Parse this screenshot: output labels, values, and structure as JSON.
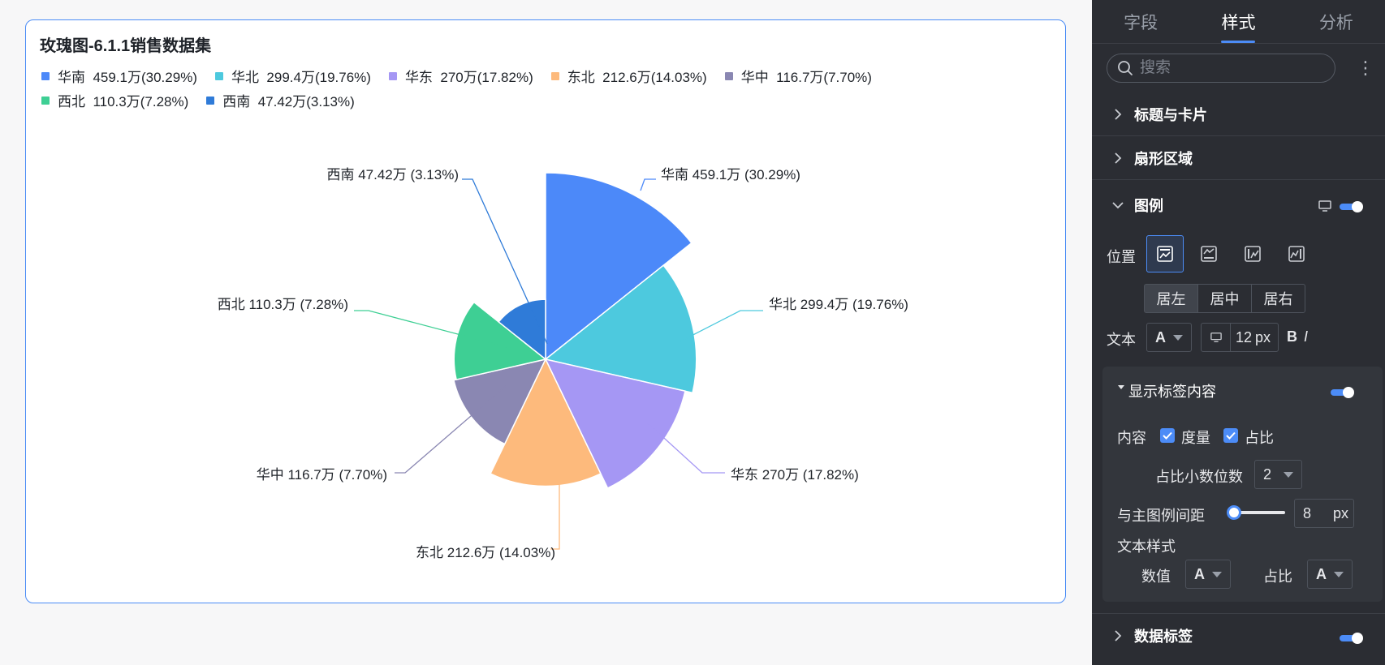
{
  "chart_title": "玫瑰图-6.1.1销售数据集",
  "chart_data": {
    "type": "pie",
    "title": "玫瑰图-6.1.1销售数据集",
    "subtype": "rose",
    "legend_position": "top-left",
    "slices": [
      {
        "name": "华南",
        "value": 459.1,
        "value_label": "459.1万",
        "percent_label": "30.29%",
        "color": "#4c89f9"
      },
      {
        "name": "华北",
        "value": 299.4,
        "value_label": "299.4万",
        "percent_label": "19.76%",
        "color": "#4dc9de"
      },
      {
        "name": "华东",
        "value": 270,
        "value_label": "270万",
        "percent_label": "17.82%",
        "color": "#a597f4"
      },
      {
        "name": "东北",
        "value": 212.6,
        "value_label": "212.6万",
        "percent_label": "14.03%",
        "color": "#fdba7c"
      },
      {
        "name": "华中",
        "value": 116.7,
        "value_label": "116.7万",
        "percent_label": "7.70%",
        "color": "#8a87b2"
      },
      {
        "name": "西北",
        "value": 110.3,
        "value_label": "110.3万",
        "percent_label": "7.28%",
        "color": "#3ecf94"
      },
      {
        "name": "西南",
        "value": 47.42,
        "value_label": "47.42万",
        "percent_label": "3.13%",
        "color": "#2f7bd8"
      }
    ],
    "legend": [
      "华南  459.1万(30.29%)",
      "华北  299.4万(19.76%)",
      "华东  270万(17.82%)",
      "东北  212.6万(14.03%)",
      "华中  116.7万(7.70%)",
      "西北  110.3万(7.28%)",
      "西南  47.42万(3.13%)"
    ],
    "data_labels": [
      "华南 459.1万 (30.29%)",
      "华北 299.4万 (19.76%)",
      "华东 270万 (17.82%)",
      "东北 212.6万 (14.03%)",
      "华中 116.7万 (7.70%)",
      "西北 110.3万 (7.28%)",
      "西南 47.42万 (3.13%)"
    ]
  },
  "panel": {
    "tabs": [
      {
        "label": "字段",
        "active": false
      },
      {
        "label": "样式",
        "active": true
      },
      {
        "label": "分析",
        "active": false
      }
    ],
    "search": {
      "placeholder": "搜索"
    },
    "more": "⋮",
    "sections": {
      "title_card": "标题与卡片",
      "sector_area": "扇形区域",
      "legend": "图例",
      "data_labels": "数据标签"
    },
    "legend_settings": {
      "position_label": "位置",
      "align": [
        {
          "label": "居左",
          "active": true
        },
        {
          "label": "居中",
          "active": false
        },
        {
          "label": "居右",
          "active": false
        }
      ],
      "text_label": "文本",
      "font_glyph": "A",
      "font_size": "12",
      "font_unit": "px",
      "bold": "B",
      "italic": "I",
      "show_label_content": "显示标签内容",
      "content_label": "内容",
      "measure_label": "度量",
      "ratio_label": "占比",
      "decimals_label": "占比小数位数",
      "decimals_value": "2",
      "gap_label": "与主图例间距",
      "gap_value": "8",
      "gap_unit": "px",
      "text_style_label": "文本样式",
      "value_label": "数值",
      "ratio_style_label": "占比",
      "value_glyph": "A",
      "ratio_glyph": "A"
    },
    "accent_color": "#4c8cf7"
  }
}
